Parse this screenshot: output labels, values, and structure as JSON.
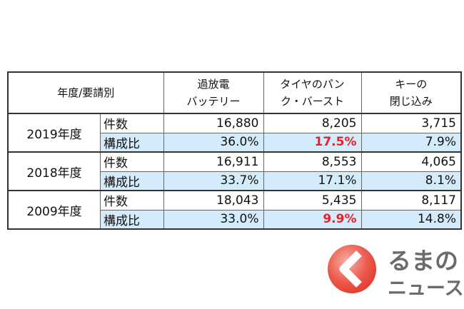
{
  "table": {
    "header": [
      [
        "年度/要請別"
      ],
      [
        "過放電",
        "バッテリー"
      ],
      [
        "タイヤのパン",
        "ク・バースト"
      ],
      [
        "キーの",
        "閉じ込み"
      ]
    ],
    "groups": [
      {
        "year": "2019年度",
        "rows": [
          {
            "label": "件数",
            "values": [
              "16,880",
              "8,205",
              "3,715"
            ],
            "emphasis": [
              false,
              false,
              false
            ],
            "shaded": false
          },
          {
            "label": "構成比",
            "values": [
              "36.0%",
              "17.5%",
              "7.9%"
            ],
            "emphasis": [
              false,
              true,
              false
            ],
            "shaded": true
          }
        ]
      },
      {
        "year": "2018年度",
        "rows": [
          {
            "label": "件数",
            "values": [
              "16,911",
              "8,553",
              "4,065"
            ],
            "emphasis": [
              false,
              false,
              false
            ],
            "shaded": false
          },
          {
            "label": "構成比",
            "values": [
              "33.7%",
              "17.1%",
              "8.1%"
            ],
            "emphasis": [
              false,
              false,
              false
            ],
            "shaded": true
          }
        ]
      },
      {
        "year": "2009年度",
        "rows": [
          {
            "label": "件数",
            "values": [
              "18,043",
              "5,435",
              "8,117"
            ],
            "emphasis": [
              false,
              false,
              false
            ],
            "shaded": false
          },
          {
            "label": "構成比",
            "values": [
              "33.0%",
              "9.9%",
              "14.8%"
            ],
            "emphasis": [
              false,
              true,
              false
            ],
            "shaded": true
          }
        ]
      }
    ]
  },
  "logo": {
    "line1": "るまの",
    "line2": "ニュース"
  }
}
